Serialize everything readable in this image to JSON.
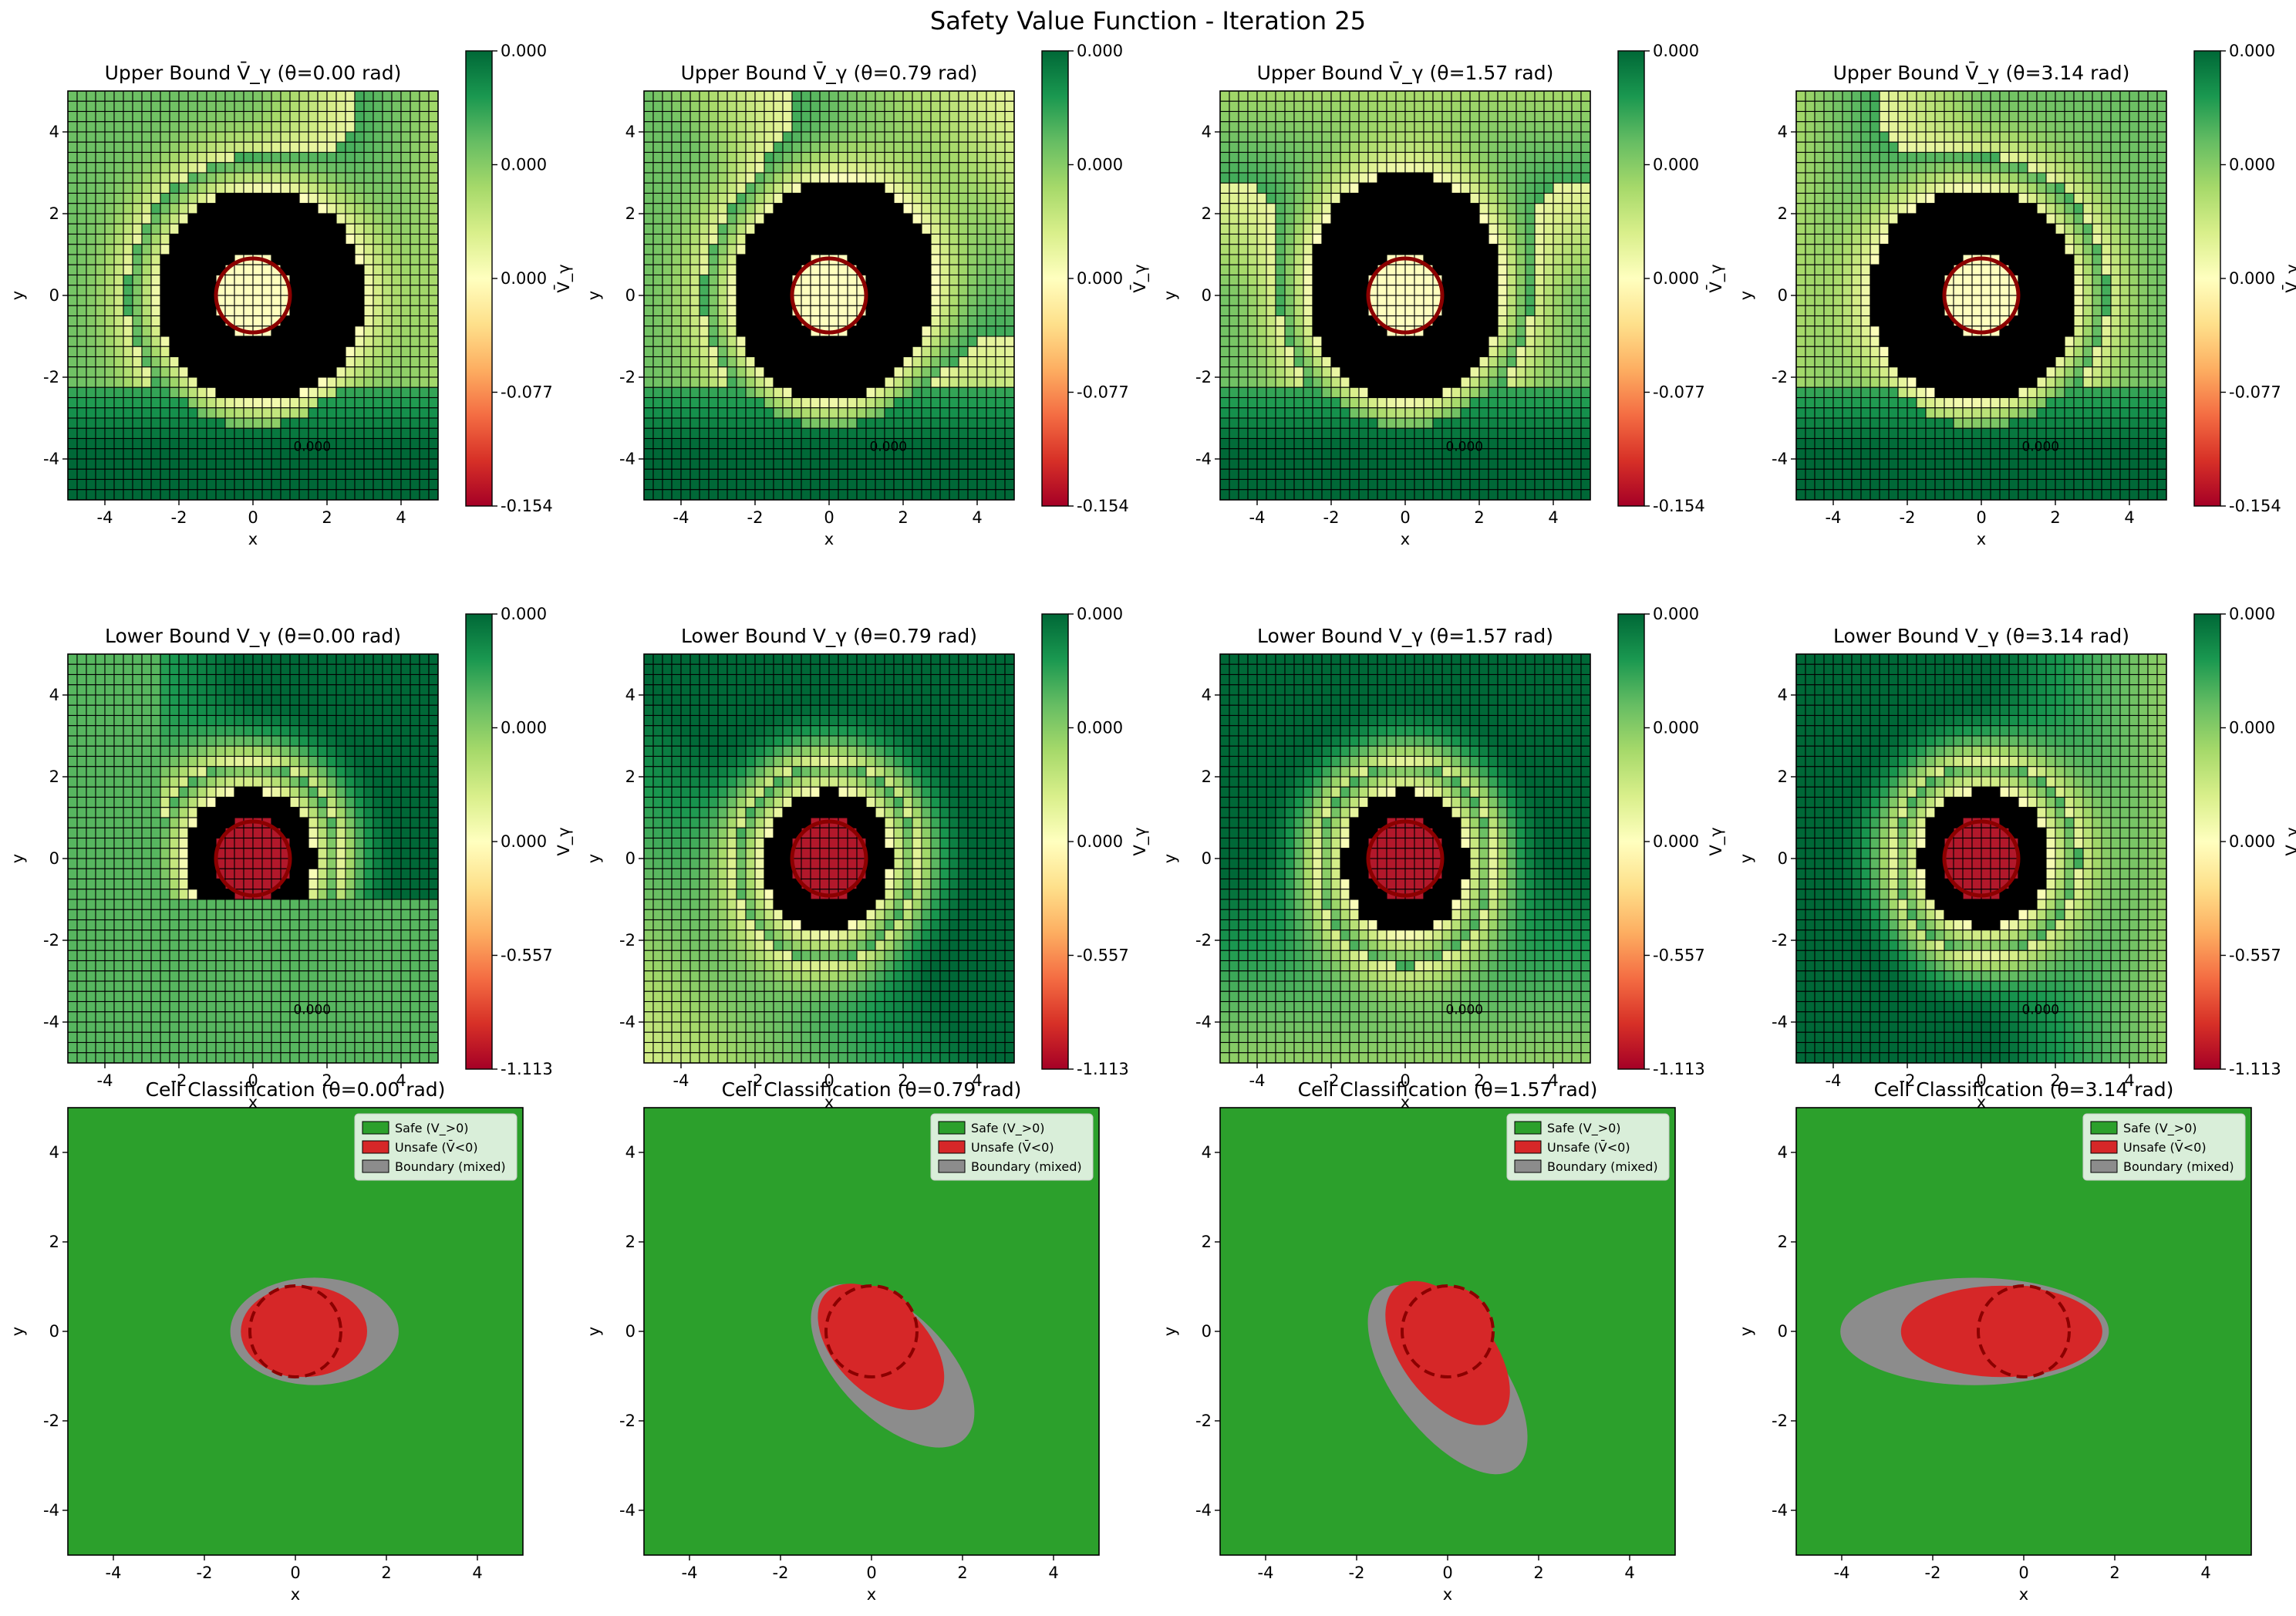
{
  "figure": {
    "suptitle": "Safety Value Function - Iteration 25"
  },
  "colors": {
    "cmap": [
      "#a50026",
      "#d73027",
      "#f46d43",
      "#fdae61",
      "#fee08b",
      "#ffffbf",
      "#d9ef8b",
      "#a6d96a",
      "#66bd63",
      "#1a9850",
      "#006837"
    ],
    "safe": "#2ca02c",
    "unsafe": "#d62728",
    "boundary": "#8c8c8c",
    "obstacle_edge": "#8b0000",
    "contour": "#e8e8e8",
    "cell_edge": "#000000"
  },
  "chart_data": [
    {
      "type": "heatmap",
      "row": "upper",
      "title": "Upper Bound V̄_γ (θ=0.00 rad)",
      "theta": 0.0,
      "xlabel": "x",
      "ylabel": "y",
      "xlim": [
        -5,
        5
      ],
      "ylim": [
        -5,
        5
      ],
      "xticks": [
        "-4",
        "-2",
        "0",
        "2",
        "4"
      ],
      "yticks": [
        "-4",
        "-2",
        "0",
        "2",
        "4"
      ],
      "colorbar": {
        "label": "V̄_γ",
        "ticks": [
          "0.000",
          "0.000",
          "0.000",
          "-0.077",
          "-0.154"
        ],
        "range": [
          -0.154,
          0.0
        ]
      },
      "contour_label": "0.000"
    },
    {
      "type": "heatmap",
      "row": "upper",
      "title": "Upper Bound V̄_γ (θ=0.79 rad)",
      "theta": 0.79,
      "xlabel": "x",
      "ylabel": "y",
      "xlim": [
        -5,
        5
      ],
      "ylim": [
        -5,
        5
      ],
      "xticks": [
        "-4",
        "-2",
        "0",
        "2",
        "4"
      ],
      "yticks": [
        "-4",
        "-2",
        "0",
        "2",
        "4"
      ],
      "colorbar": {
        "label": "V̄_γ",
        "ticks": [
          "0.000",
          "0.000",
          "0.000",
          "-0.077",
          "-0.154"
        ],
        "range": [
          -0.154,
          0.0
        ]
      },
      "contour_label": "0.000"
    },
    {
      "type": "heatmap",
      "row": "upper",
      "title": "Upper Bound V̄_γ (θ=1.57 rad)",
      "theta": 1.57,
      "xlabel": "x",
      "ylabel": "y",
      "xlim": [
        -5,
        5
      ],
      "ylim": [
        -5,
        5
      ],
      "xticks": [
        "-4",
        "-2",
        "0",
        "2",
        "4"
      ],
      "yticks": [
        "-4",
        "-2",
        "0",
        "2",
        "4"
      ],
      "colorbar": {
        "label": "V̄_γ",
        "ticks": [
          "0.000",
          "0.000",
          "0.000",
          "-0.077",
          "-0.154"
        ],
        "range": [
          -0.154,
          0.0
        ]
      },
      "contour_label": "0.000"
    },
    {
      "type": "heatmap",
      "row": "upper",
      "title": "Upper Bound V̄_γ (θ=3.14 rad)",
      "theta": 3.14,
      "xlabel": "x",
      "ylabel": "y",
      "xlim": [
        -5,
        5
      ],
      "ylim": [
        -5,
        5
      ],
      "xticks": [
        "-4",
        "-2",
        "0",
        "2",
        "4"
      ],
      "yticks": [
        "-4",
        "-2",
        "0",
        "2",
        "4"
      ],
      "colorbar": {
        "label": "V̄_γ",
        "ticks": [
          "0.000",
          "0.000",
          "0.000",
          "-0.077",
          "-0.154"
        ],
        "range": [
          -0.154,
          0.0
        ]
      },
      "contour_label": "0.000"
    },
    {
      "type": "heatmap",
      "row": "lower",
      "title": "Lower Bound V_γ (θ=0.00 rad)",
      "theta": 0.0,
      "xlabel": "x",
      "ylabel": "y",
      "xlim": [
        -5,
        5
      ],
      "ylim": [
        -5,
        5
      ],
      "xticks": [
        "-4",
        "-2",
        "0",
        "2",
        "4"
      ],
      "yticks": [
        "-4",
        "-2",
        "0",
        "2",
        "4"
      ],
      "colorbar": {
        "label": "V_γ",
        "ticks": [
          "0.000",
          "0.000",
          "0.000",
          "-0.557",
          "-1.113"
        ],
        "range": [
          -1.113,
          0.0
        ]
      },
      "contour_label": "0.000"
    },
    {
      "type": "heatmap",
      "row": "lower",
      "title": "Lower Bound V_γ (θ=0.79 rad)",
      "theta": 0.79,
      "xlabel": "x",
      "ylabel": "y",
      "xlim": [
        -5,
        5
      ],
      "ylim": [
        -5,
        5
      ],
      "xticks": [
        "-4",
        "-2",
        "0",
        "2",
        "4"
      ],
      "yticks": [
        "-4",
        "-2",
        "0",
        "2",
        "4"
      ],
      "colorbar": {
        "label": "V_γ",
        "ticks": [
          "0.000",
          "0.000",
          "0.000",
          "-0.557",
          "-1.113"
        ],
        "range": [
          -1.113,
          0.0
        ]
      },
      "contour_label": ""
    },
    {
      "type": "heatmap",
      "row": "lower",
      "title": "Lower Bound V_γ (θ=1.57 rad)",
      "theta": 1.57,
      "xlabel": "x",
      "ylabel": "y",
      "xlim": [
        -5,
        5
      ],
      "ylim": [
        -5,
        5
      ],
      "xticks": [
        "-4",
        "-2",
        "0",
        "2",
        "4"
      ],
      "yticks": [
        "-4",
        "-2",
        "0",
        "2",
        "4"
      ],
      "colorbar": {
        "label": "V_γ",
        "ticks": [
          "0.000",
          "0.000",
          "0.000",
          "-0.557",
          "-1.113"
        ],
        "range": [
          -1.113,
          0.0
        ]
      },
      "contour_label": "0.000"
    },
    {
      "type": "heatmap",
      "row": "lower",
      "title": "Lower Bound V_γ (θ=3.14 rad)",
      "theta": 3.14,
      "xlabel": "x",
      "ylabel": "y",
      "xlim": [
        -5,
        5
      ],
      "ylim": [
        -5,
        5
      ],
      "xticks": [
        "-4",
        "-2",
        "0",
        "2",
        "4"
      ],
      "yticks": [
        "-4",
        "-2",
        "0",
        "2",
        "4"
      ],
      "colorbar": {
        "label": "V_γ",
        "ticks": [
          "0.000",
          "0.000",
          "0.000",
          "-0.557",
          "-1.113"
        ],
        "range": [
          -1.113,
          0.0
        ]
      },
      "contour_label": "0.000"
    },
    {
      "type": "heatmap",
      "row": "classification",
      "title": "Cell Classification (θ=0.00 rad)",
      "theta": 0.0,
      "xlabel": "x",
      "ylabel": "y",
      "xlim": [
        -5,
        5
      ],
      "ylim": [
        -5,
        5
      ],
      "xticks": [
        "-4",
        "-2",
        "0",
        "2",
        "4"
      ],
      "yticks": [
        "-4",
        "-2",
        "0",
        "2",
        "4"
      ],
      "legend": {
        "loc": "upper right",
        "items": [
          "Safe (V_>0)",
          "Unsafe (V̄<0)",
          "Boundary (mixed)"
        ]
      },
      "obstacle": {
        "center": [
          0,
          0
        ],
        "radius": 1.0
      }
    },
    {
      "type": "heatmap",
      "row": "classification",
      "title": "Cell Classification (θ=0.79 rad)",
      "theta": 0.79,
      "xlabel": "x",
      "ylabel": "y",
      "xlim": [
        -5,
        5
      ],
      "ylim": [
        -5,
        5
      ],
      "xticks": [
        "-4",
        "-2",
        "0",
        "2",
        "4"
      ],
      "yticks": [
        "-4",
        "-2",
        "0",
        "2",
        "4"
      ],
      "legend": {
        "loc": "upper right",
        "items": [
          "Safe (V_>0)",
          "Unsafe (V̄<0)",
          "Boundary (mixed)"
        ]
      },
      "obstacle": {
        "center": [
          0,
          0
        ],
        "radius": 1.0
      }
    },
    {
      "type": "heatmap",
      "row": "classification",
      "title": "Cell Classification (θ=1.57 rad)",
      "theta": 1.57,
      "xlabel": "x",
      "ylabel": "y",
      "xlim": [
        -5,
        5
      ],
      "ylim": [
        -5,
        5
      ],
      "xticks": [
        "-4",
        "-2",
        "0",
        "2",
        "4"
      ],
      "yticks": [
        "-4",
        "-2",
        "0",
        "2",
        "4"
      ],
      "legend": {
        "loc": "upper right",
        "items": [
          "Safe (V_>0)",
          "Unsafe (V̄<0)",
          "Boundary (mixed)"
        ]
      },
      "obstacle": {
        "center": [
          0,
          0
        ],
        "radius": 1.0
      }
    },
    {
      "type": "heatmap",
      "row": "classification",
      "title": "Cell Classification (θ=3.14 rad)",
      "theta": 3.14,
      "xlabel": "x",
      "ylabel": "y",
      "xlim": [
        -5,
        5
      ],
      "ylim": [
        -5,
        5
      ],
      "xticks": [
        "-4",
        "-2",
        "0",
        "2",
        "4"
      ],
      "yticks": [
        "-4",
        "-2",
        "0",
        "2",
        "4"
      ],
      "legend": {
        "loc": "upper right",
        "items": [
          "Safe (V_>0)",
          "Unsafe (V̄<0)",
          "Boundary (mixed)"
        ]
      },
      "obstacle": {
        "center": [
          0,
          0
        ],
        "radius": 1.0
      }
    }
  ]
}
